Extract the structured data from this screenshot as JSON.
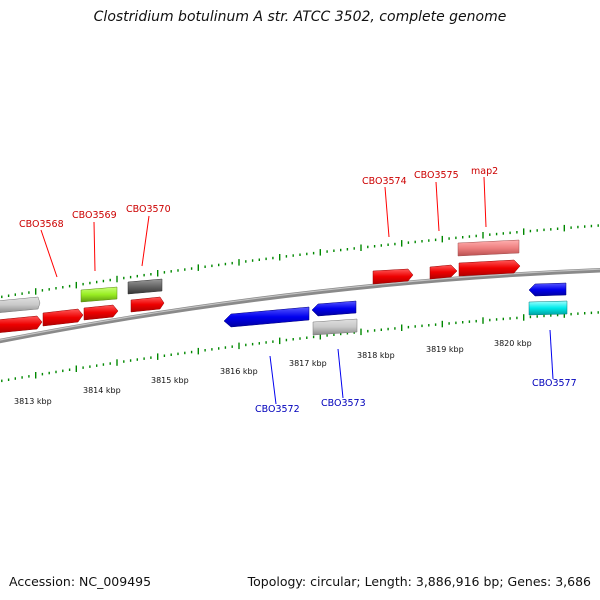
{
  "title": "Clostridium botulinum A str. ATCC 3502, complete genome",
  "footer": {
    "accession": "Accession: NC_009495",
    "summary": "Topology: circular; Length: 3,886,916 bp; Genes: 3,686"
  },
  "colors": {
    "forward": "#ff0000",
    "reverse": "#0000ee",
    "forward_label": "#cc0000",
    "reverse_label": "#0000bb",
    "backbone": "#8a8a8a",
    "tick": "#008800"
  },
  "scale": {
    "unit": "kbp",
    "labels": [
      "3813 kbp",
      "3814 kbp",
      "3815 kbp",
      "3816 kbp",
      "3817 kbp",
      "3818 kbp",
      "3819 kbp",
      "3820 kbp"
    ]
  },
  "genes": {
    "forward_labels": [
      "CBO3568",
      "CBO3569",
      "CBO3570",
      "CBO3574",
      "CBO3575",
      "map2"
    ],
    "reverse_labels": [
      "CBO3572",
      "CBO3573",
      "CBO3577"
    ]
  }
}
